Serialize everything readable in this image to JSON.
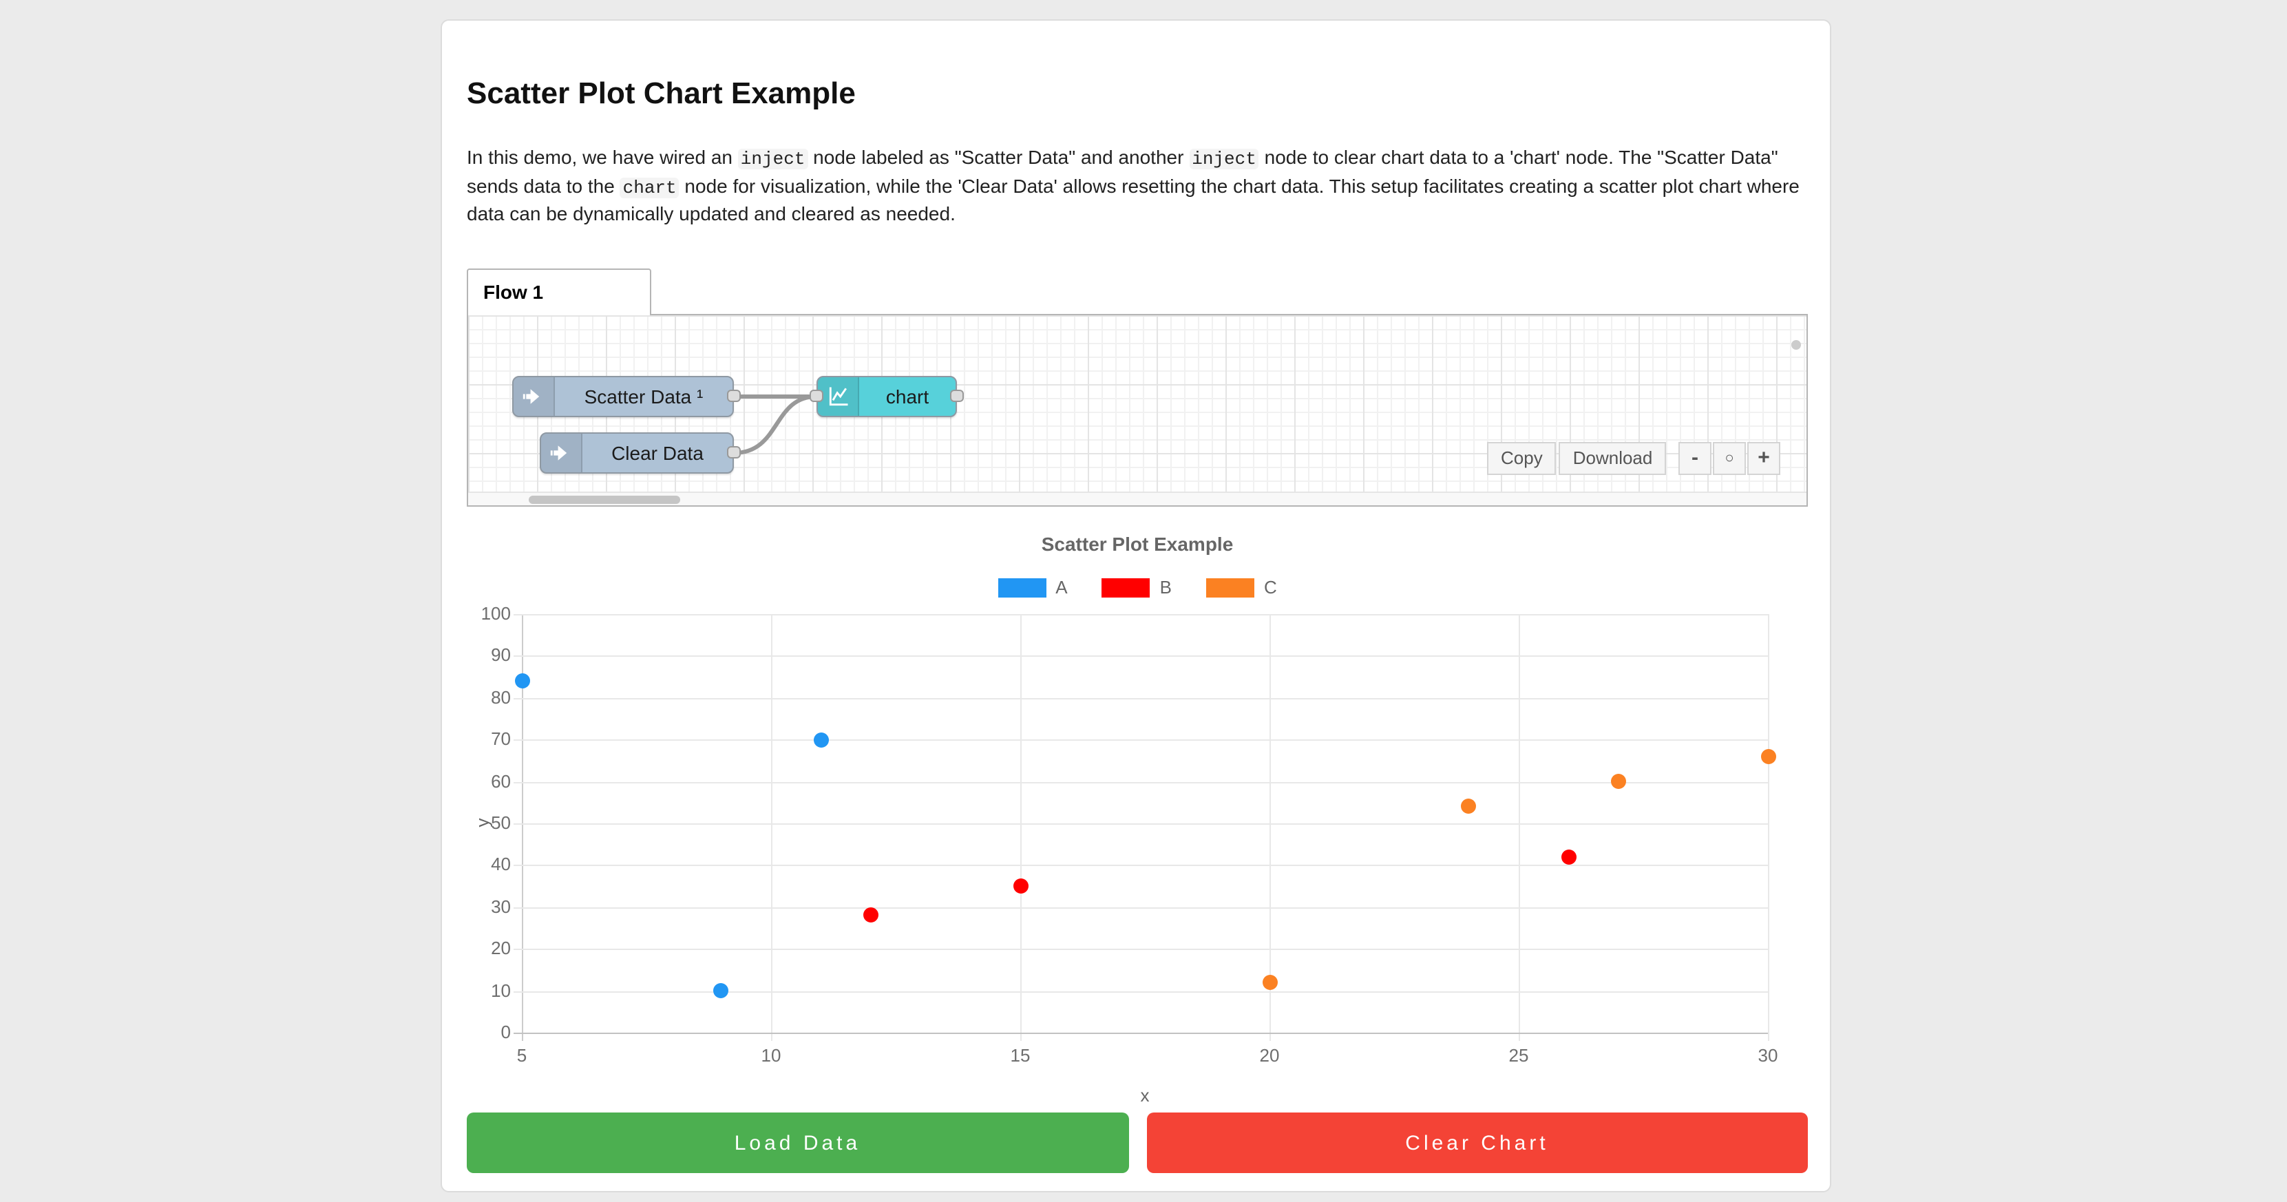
{
  "page": {
    "background_color": "#EBEBEB",
    "title": "Scatter Plot Chart Example"
  },
  "intro": {
    "segments": [
      {
        "type": "text",
        "value": "In this demo, we have wired an "
      },
      {
        "type": "code",
        "value": "inject"
      },
      {
        "type": "text",
        "value": " node labeled as \"Scatter Data\" and another "
      },
      {
        "type": "code",
        "value": "inject"
      },
      {
        "type": "text",
        "value": " node to clear chart data to a 'chart' node. The \"Scatter Data\" sends data to the "
      },
      {
        "type": "code",
        "value": "chart"
      },
      {
        "type": "text",
        "value": " node for visualization, while the 'Clear Data' allows resetting the chart data. This setup facilitates creating a scatter plot chart where data can be dynamically updated and cleared as needed."
      }
    ]
  },
  "flow_editor": {
    "tab_label": "Flow 1",
    "nodes": [
      {
        "label": "Scatter Data ¹",
        "type": "inject",
        "color": "#AEC2D6"
      },
      {
        "label": "Clear Data",
        "type": "inject",
        "color": "#AEC2D6"
      },
      {
        "label": "chart",
        "type": "chart",
        "color": "#57D1DA",
        "icon_band_color": "#48C2CD"
      }
    ],
    "connections": [
      [
        "Scatter Data ¹",
        "chart"
      ],
      [
        "Clear Data",
        "chart"
      ]
    ],
    "toolbar": {
      "copy_label": "Copy",
      "download_label": "Download"
    },
    "zoom_controls": {
      "zoom_out_label": "-",
      "zoom_reset_label": "○",
      "zoom_in_label": "+"
    }
  },
  "chart_data": {
    "type": "scatter",
    "title": "Scatter Plot Example",
    "xlabel": "x",
    "ylabel": "y",
    "xlim": [
      5,
      30
    ],
    "ylim": [
      0,
      100
    ],
    "x_ticks": [
      5,
      10,
      15,
      20,
      25,
      30
    ],
    "y_ticks": [
      0,
      10,
      20,
      30,
      40,
      50,
      60,
      70,
      80,
      90,
      100
    ],
    "grid": true,
    "legend_position": "top",
    "series": [
      {
        "name": "A",
        "color": "#2196F3",
        "points": [
          [
            5,
            84
          ],
          [
            9,
            10
          ],
          [
            11,
            70
          ]
        ]
      },
      {
        "name": "B",
        "color": "#FF0000",
        "points": [
          [
            12,
            28
          ],
          [
            15,
            35
          ],
          [
            26,
            42
          ]
        ]
      },
      {
        "name": "C",
        "color": "#FB8122",
        "points": [
          [
            20,
            12
          ],
          [
            24,
            54
          ],
          [
            27,
            60
          ],
          [
            30,
            66
          ]
        ]
      }
    ]
  },
  "actions": {
    "load_label": "Load Data",
    "load_color": "#4CAF50",
    "clear_label": "Clear Chart",
    "clear_color": "#F44336"
  }
}
